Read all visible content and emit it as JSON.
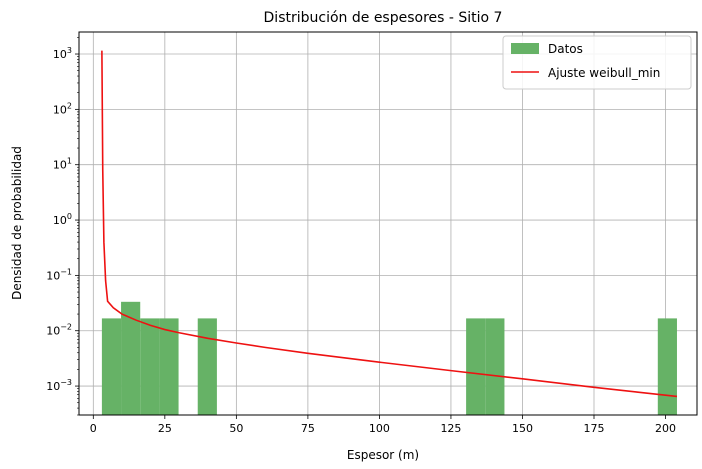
{
  "chart_data": {
    "type": "bar",
    "title": "Distribución de espesores - Sitio 7",
    "xlabel": "Espesor (m)",
    "ylabel": "Densidad de probabilidad",
    "xlim": [
      -5,
      211
    ],
    "ylim": [
      0.0003,
      2500
    ],
    "yscale": "log",
    "grid": true,
    "legend_position": "top-right",
    "x_ticks": [
      0,
      25,
      50,
      75,
      100,
      125,
      150,
      175,
      200
    ],
    "y_ticks": [
      {
        "value": 0.001,
        "label_base": "10",
        "label_exp": "−3"
      },
      {
        "value": 0.01,
        "label_base": "10",
        "label_exp": "−2"
      },
      {
        "value": 0.1,
        "label_base": "10",
        "label_exp": "−1"
      },
      {
        "value": 1,
        "label_base": "10",
        "label_exp": "0"
      },
      {
        "value": 10,
        "label_base": "10",
        "label_exp": "1"
      },
      {
        "value": 100,
        "label_base": "10",
        "label_exp": "2"
      },
      {
        "value": 1000,
        "label_base": "10",
        "label_exp": "3"
      }
    ],
    "histogram": {
      "name": "Datos",
      "color": "#66b266",
      "bins": [
        {
          "x0": 3.0,
          "x1": 9.7,
          "density": 0.0167
        },
        {
          "x0": 9.7,
          "x1": 16.4,
          "density": 0.0333
        },
        {
          "x0": 16.4,
          "x1": 23.1,
          "density": 0.0167
        },
        {
          "x0": 23.1,
          "x1": 29.8,
          "density": 0.0167
        },
        {
          "x0": 36.5,
          "x1": 43.2,
          "density": 0.0167
        },
        {
          "x0": 130.3,
          "x1": 137.0,
          "density": 0.0167
        },
        {
          "x0": 137.0,
          "x1": 143.7,
          "density": 0.0167
        },
        {
          "x0": 197.3,
          "x1": 204.0,
          "density": 0.0167
        }
      ]
    },
    "fit_line": {
      "name": "Ajuste weibull_min",
      "color": "#ee1111",
      "points": [
        [
          3.0,
          1150
        ],
        [
          3.3,
          8.0
        ],
        [
          3.7,
          0.4
        ],
        [
          4.3,
          0.08
        ],
        [
          5.0,
          0.034
        ],
        [
          7,
          0.026
        ],
        [
          10,
          0.02
        ],
        [
          15,
          0.0155
        ],
        [
          20,
          0.0125
        ],
        [
          25,
          0.0105
        ],
        [
          30,
          0.0092
        ],
        [
          40,
          0.0073
        ],
        [
          50,
          0.006
        ],
        [
          60,
          0.005
        ],
        [
          75,
          0.0039
        ],
        [
          100,
          0.0027
        ],
        [
          125,
          0.0019
        ],
        [
          150,
          0.00135
        ],
        [
          175,
          0.00095
        ],
        [
          190,
          0.00078
        ],
        [
          204,
          0.00065
        ]
      ]
    }
  }
}
